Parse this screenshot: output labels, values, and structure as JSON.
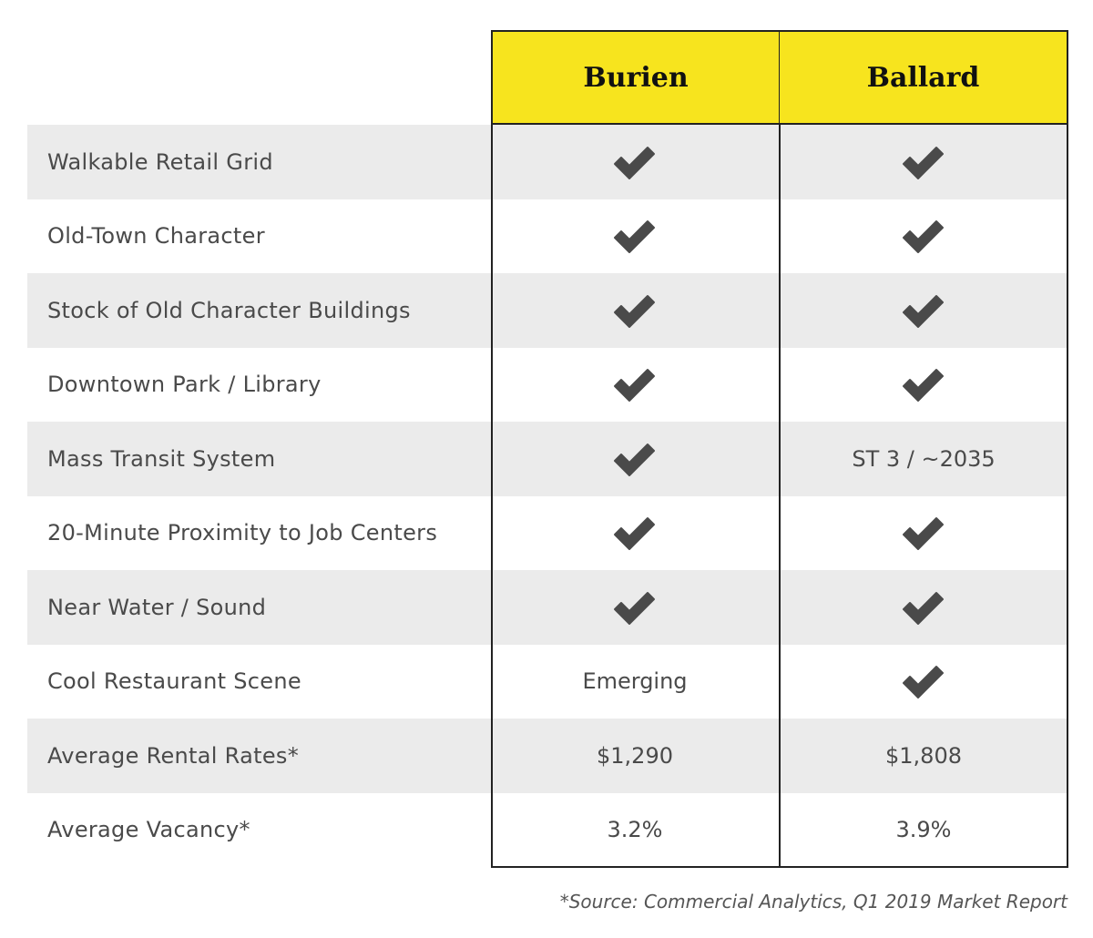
{
  "table": {
    "columns": [
      "Burien",
      "Ballard"
    ],
    "rows": [
      {
        "label": "Walkable Retail Grid",
        "burien": {
          "check": true,
          "text": ""
        },
        "ballard": {
          "check": true,
          "text": ""
        }
      },
      {
        "label": "Old-Town Character",
        "burien": {
          "check": true,
          "text": ""
        },
        "ballard": {
          "check": true,
          "text": ""
        }
      },
      {
        "label": "Stock of Old Character Buildings",
        "burien": {
          "check": true,
          "text": ""
        },
        "ballard": {
          "check": true,
          "text": ""
        }
      },
      {
        "label": "Downtown Park / Library",
        "burien": {
          "check": true,
          "text": ""
        },
        "ballard": {
          "check": true,
          "text": ""
        }
      },
      {
        "label": "Mass Transit System",
        "burien": {
          "check": true,
          "text": ""
        },
        "ballard": {
          "check": false,
          "text": "ST 3 / ~2035"
        }
      },
      {
        "label": "20-Minute Proximity to Job Centers",
        "burien": {
          "check": true,
          "text": ""
        },
        "ballard": {
          "check": true,
          "text": ""
        }
      },
      {
        "label": "Near Water / Sound",
        "burien": {
          "check": true,
          "text": ""
        },
        "ballard": {
          "check": true,
          "text": ""
        }
      },
      {
        "label": "Cool Restaurant Scene",
        "burien": {
          "check": false,
          "text": "Emerging"
        },
        "ballard": {
          "check": true,
          "text": ""
        }
      },
      {
        "label": "Average Rental Rates*",
        "burien": {
          "check": false,
          "text": "$1,290"
        },
        "ballard": {
          "check": false,
          "text": "$1,808"
        }
      },
      {
        "label": "Average Vacancy*",
        "burien": {
          "check": false,
          "text": "3.2%"
        },
        "ballard": {
          "check": false,
          "text": "3.9%"
        }
      }
    ]
  },
  "footnote": "*Source: Commercial Analytics, Q1 2019 Market Report",
  "colors": {
    "header_bg": "#f7e41e",
    "row_shade": "#ebebeb",
    "check": "#4a4a4a",
    "border": "#222222"
  }
}
